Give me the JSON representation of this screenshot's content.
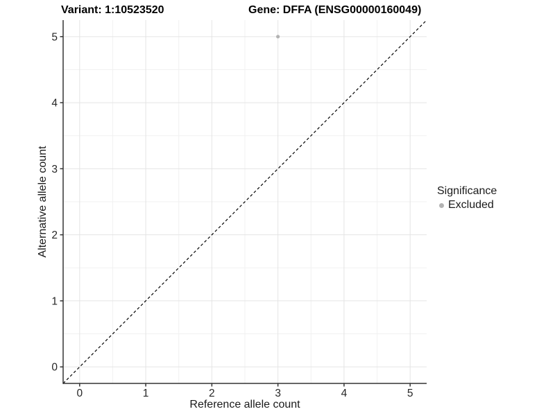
{
  "chart_data": {
    "type": "scatter",
    "titles": {
      "left": "Variant: 1:10523520",
      "right": "Gene: DFFA (ENSG00000160049)"
    },
    "xlabel": "Reference allele count",
    "ylabel": "Alternative allele count",
    "xlim": [
      -0.25,
      5.25
    ],
    "ylim": [
      -0.25,
      5.25
    ],
    "x_ticks": [
      0,
      1,
      2,
      3,
      4,
      5
    ],
    "y_ticks": [
      0,
      1,
      2,
      3,
      4,
      5
    ],
    "grid": {
      "major": true,
      "minor": true
    },
    "series": [
      {
        "name": "Excluded",
        "color": "#b3b3b3",
        "points": [
          {
            "x": 3,
            "y": 5
          }
        ]
      }
    ],
    "reference_line": {
      "style": "dashed",
      "color": "#000000",
      "from": {
        "x": -0.25,
        "y": -0.25
      },
      "to": {
        "x": 5.25,
        "y": 5.25
      }
    },
    "legend": {
      "title": "Significance",
      "position": "right",
      "entries": [
        {
          "label": "Excluded",
          "color": "#b3b3b3",
          "marker": "circle"
        }
      ]
    }
  },
  "colors": {
    "background": "#ffffff",
    "grid_major": "#e4e4e4",
    "grid_minor": "#f1f1f1",
    "axis": "#333333",
    "tick_text": "#262626"
  }
}
